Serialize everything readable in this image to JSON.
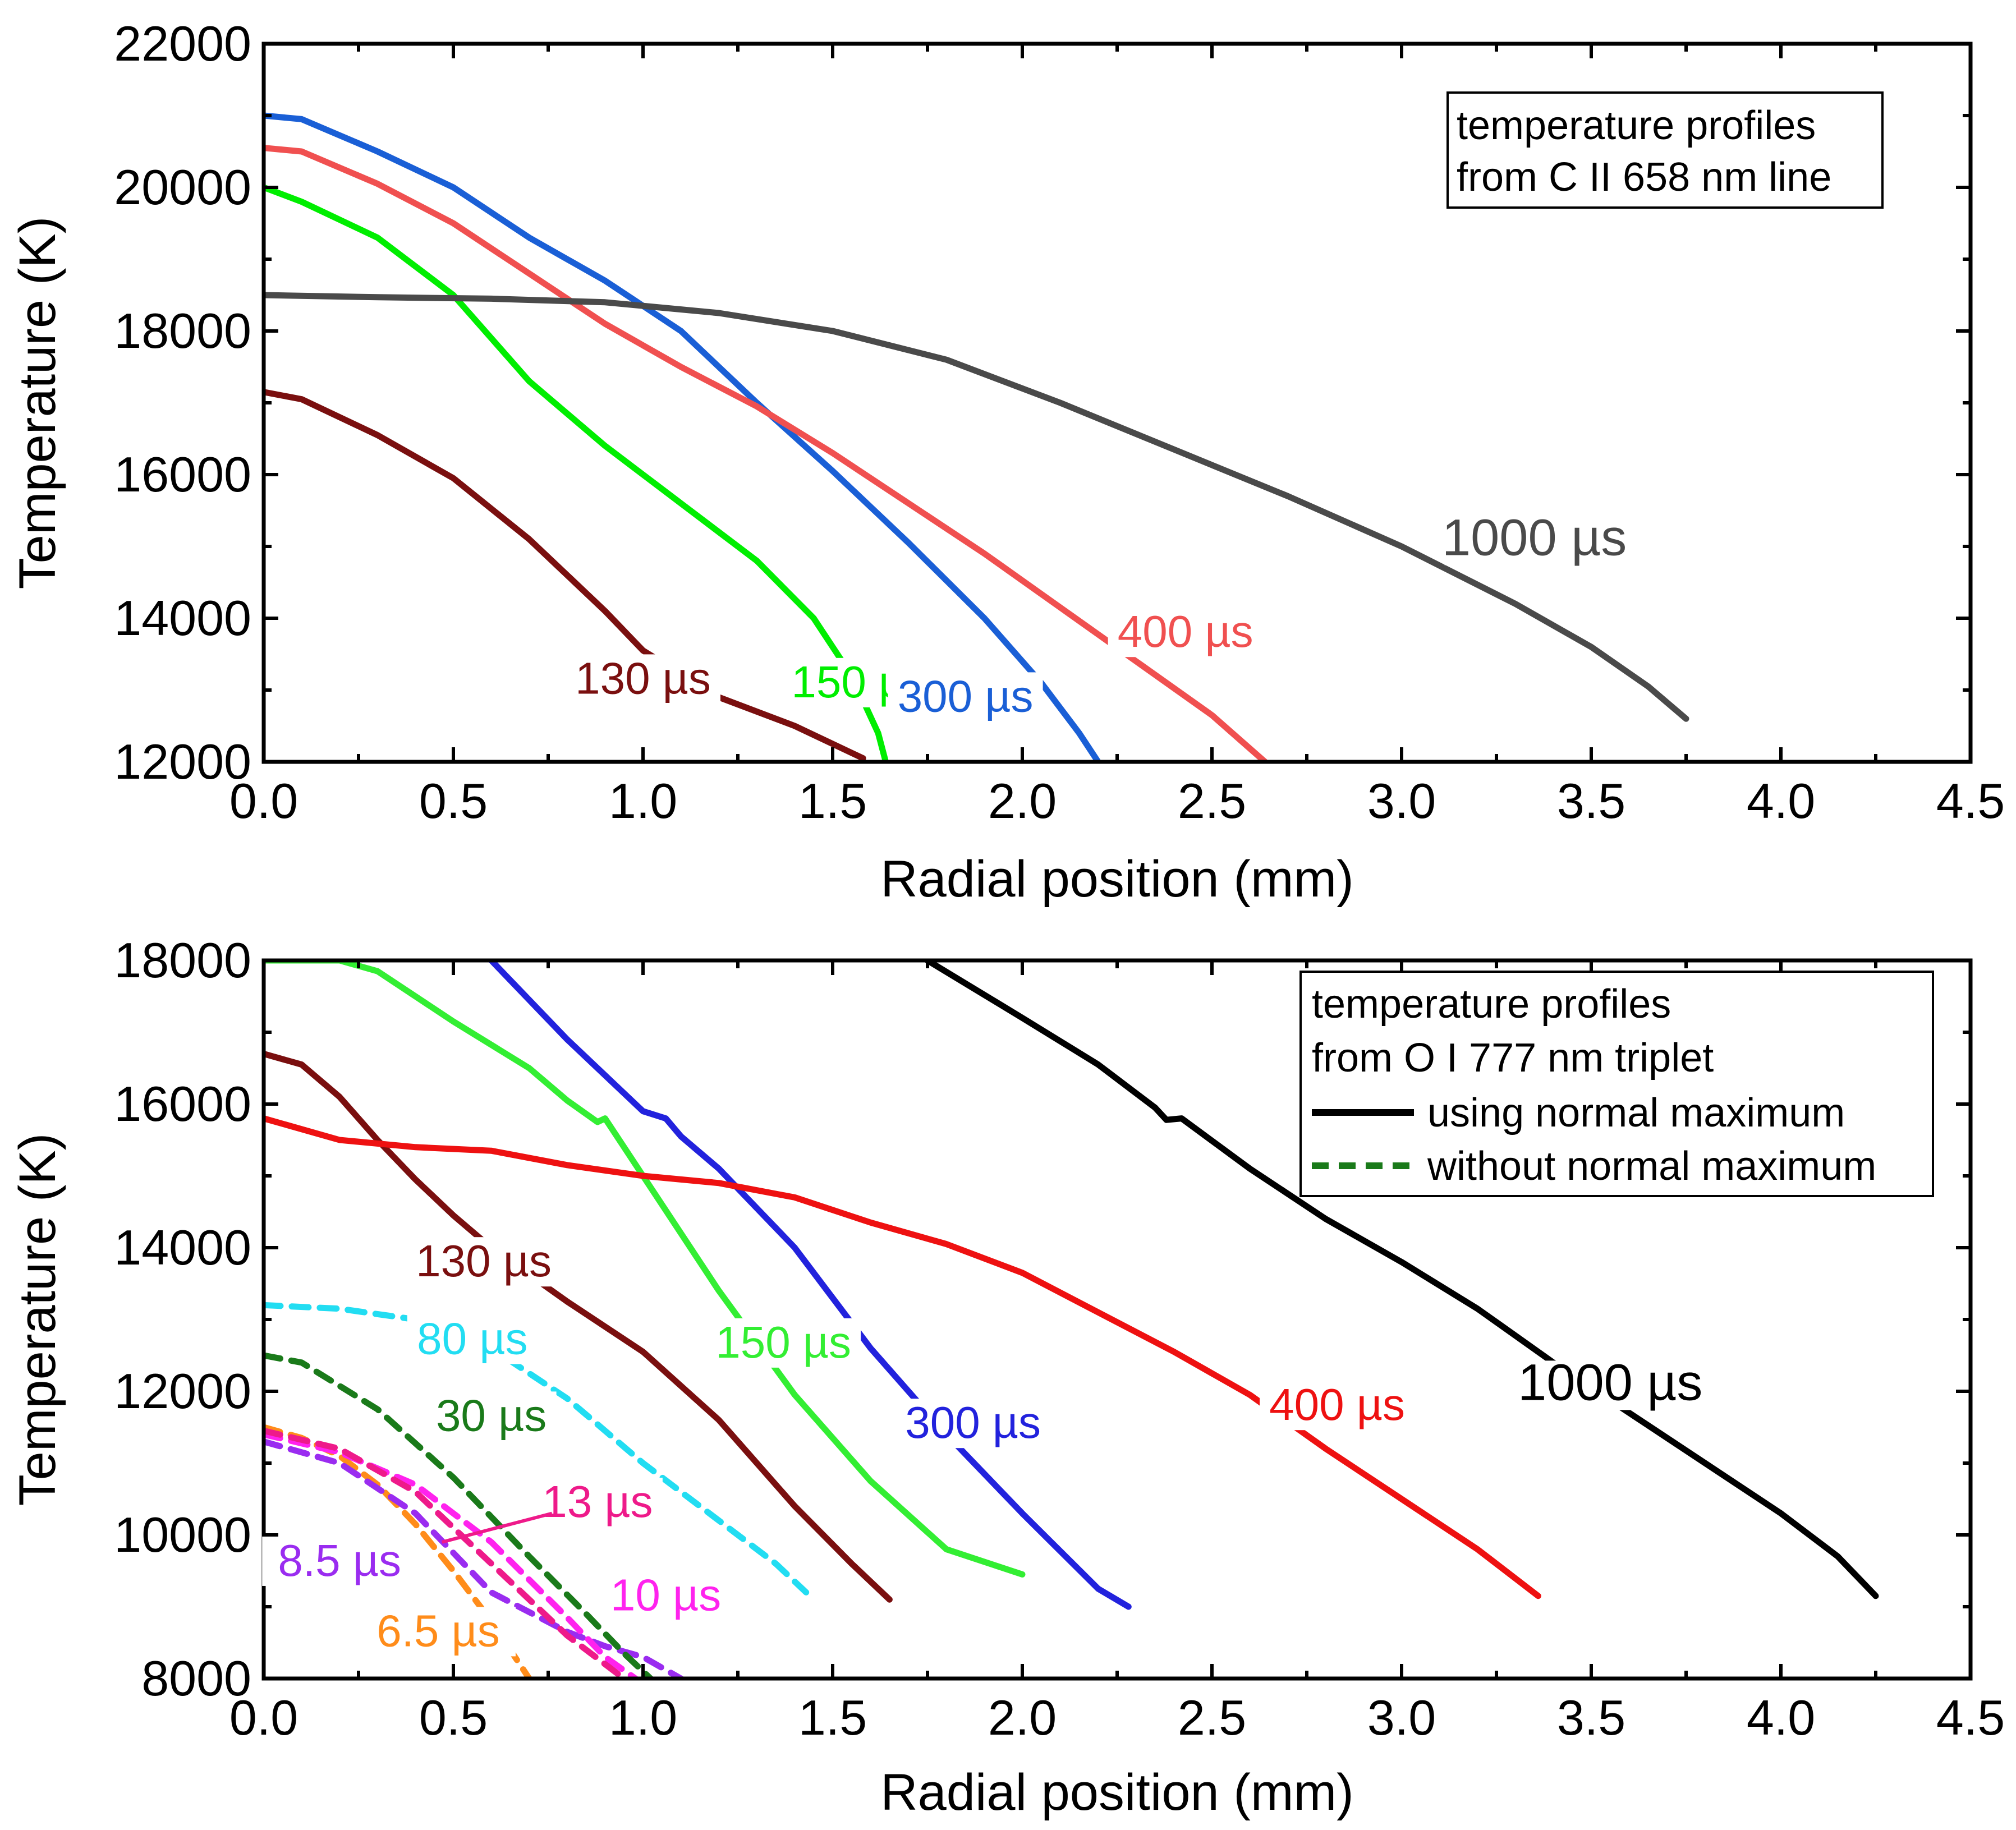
{
  "chart_data": [
    {
      "type": "line",
      "xlabel": "Radial position (mm)",
      "ylabel": "Temperature (K)",
      "xlim": [
        0,
        4.5
      ],
      "ylim": [
        12000,
        22000
      ],
      "xticks": [
        "0.0",
        "0.5",
        "1.0",
        "1.5",
        "2.0",
        "2.5",
        "3.0",
        "3.5",
        "4.0",
        "4.5"
      ],
      "yticks": [
        "12000",
        "14000",
        "16000",
        "18000",
        "20000",
        "22000"
      ],
      "legend": {
        "lines": [
          "temperature profiles",
          "from C II 658 nm line"
        ],
        "placement": "top-right"
      },
      "series": [
        {
          "name": "130 µs",
          "color": "#7a0f0f",
          "dash": false,
          "x": [
            0,
            0.1,
            0.3,
            0.5,
            0.7,
            0.9,
            1.0,
            1.2,
            1.4,
            1.58
          ],
          "y": [
            17150,
            17050,
            16550,
            15950,
            15100,
            14100,
            13550,
            12900,
            12500,
            12050
          ]
        },
        {
          "name": "150 µs",
          "color": "#00ee00",
          "dash": false,
          "x": [
            0,
            0.1,
            0.3,
            0.5,
            0.7,
            0.9,
            1.1,
            1.3,
            1.45,
            1.55,
            1.62,
            1.64
          ],
          "y": [
            20000,
            19800,
            19300,
            18500,
            17300,
            16400,
            15600,
            14800,
            14000,
            13200,
            12400,
            12000
          ]
        },
        {
          "name": "300 µs",
          "color": "#1a5fd6",
          "dash": false,
          "x": [
            0,
            0.1,
            0.3,
            0.5,
            0.7,
            0.9,
            1.1,
            1.3,
            1.5,
            1.7,
            1.9,
            2.05,
            2.15,
            2.2
          ],
          "y": [
            21000,
            20950,
            20500,
            20000,
            19300,
            18700,
            18000,
            17000,
            16050,
            15050,
            14000,
            13100,
            12400,
            12000
          ]
        },
        {
          "name": "400 µs",
          "color": "#f05050",
          "dash": false,
          "x": [
            0,
            0.1,
            0.3,
            0.5,
            0.7,
            0.9,
            1.1,
            1.3,
            1.5,
            1.7,
            1.9,
            2.1,
            2.3,
            2.5,
            2.64
          ],
          "y": [
            20550,
            20500,
            20050,
            19500,
            18800,
            18100,
            17500,
            16950,
            16300,
            15600,
            14900,
            14150,
            13400,
            12650,
            12000
          ]
        },
        {
          "name": "1000 µs",
          "color": "#4a4a4a",
          "dash": false,
          "x": [
            0,
            0.3,
            0.6,
            0.9,
            1.2,
            1.5,
            1.8,
            2.1,
            2.4,
            2.7,
            3.0,
            3.3,
            3.5,
            3.65,
            3.75
          ],
          "y": [
            18500,
            18470,
            18450,
            18400,
            18250,
            18000,
            17600,
            17000,
            16350,
            15700,
            15000,
            14200,
            13600,
            13050,
            12600
          ]
        }
      ]
    },
    {
      "type": "line",
      "xlabel": "Radial position (mm)",
      "ylabel": "Temperature (K)",
      "xlim": [
        0,
        4.5
      ],
      "ylim": [
        8000,
        18000
      ],
      "xticks": [
        "0.0",
        "0.5",
        "1.0",
        "1.5",
        "2.0",
        "2.5",
        "3.0",
        "3.5",
        "4.0",
        "4.5"
      ],
      "yticks": [
        "8000",
        "10000",
        "12000",
        "14000",
        "16000",
        "18000"
      ],
      "legend": {
        "lines": [
          "temperature profiles",
          "from O I 777 nm triplet"
        ],
        "entries": [
          {
            "label": "using normal maximum",
            "color": "#000000",
            "dash": false
          },
          {
            "label": "without normal maximum",
            "color": "#1a7a1a",
            "dash": true
          }
        ],
        "placement": "top-right"
      },
      "series": [
        {
          "name": "6.5 µs",
          "color": "#ff8c1a",
          "dash": true,
          "x": [
            0,
            0.1,
            0.2,
            0.3,
            0.4,
            0.5,
            0.6,
            0.7
          ],
          "y": [
            11500,
            11350,
            11100,
            10700,
            10150,
            9500,
            8800,
            8000
          ]
        },
        {
          "name": "8.5 µs",
          "color": "#9a2cf0",
          "dash": true,
          "x": [
            0,
            0.2,
            0.4,
            0.6,
            0.8,
            0.9,
            1.0,
            1.1
          ],
          "y": [
            11300,
            11000,
            10300,
            9200,
            8650,
            8450,
            8300,
            8000
          ]
        },
        {
          "name": "10 µs",
          "color": "#ff22ee",
          "dash": true,
          "x": [
            0,
            0.2,
            0.4,
            0.6,
            0.8,
            0.9,
            0.98
          ],
          "y": [
            11400,
            11150,
            10700,
            9900,
            8850,
            8300,
            8000
          ]
        },
        {
          "name": "13 µs",
          "color": "#ee1a8a",
          "dash": true,
          "x": [
            0,
            0.2,
            0.4,
            0.6,
            0.8,
            0.95
          ],
          "y": [
            11450,
            11200,
            10600,
            9600,
            8600,
            8000
          ]
        },
        {
          "name": "30 µs",
          "color": "#1a7a1a",
          "dash": true,
          "x": [
            0,
            0.1,
            0.3,
            0.5,
            0.7,
            0.85,
            0.95,
            1.02
          ],
          "y": [
            12500,
            12400,
            11750,
            10800,
            9700,
            8900,
            8350,
            8000
          ]
        },
        {
          "name": "80 µs",
          "color": "#22ddf2",
          "dash": true,
          "x": [
            0,
            0.2,
            0.4,
            0.6,
            0.8,
            1.0,
            1.2,
            1.35,
            1.43
          ],
          "y": [
            13200,
            13150,
            13000,
            12600,
            11900,
            11000,
            10200,
            9600,
            9200
          ]
        },
        {
          "name": "130 µs",
          "color": "#7a0f0f",
          "dash": false,
          "x": [
            0,
            0.1,
            0.2,
            0.3,
            0.4,
            0.5,
            0.6,
            0.8,
            1.0,
            1.2,
            1.4,
            1.55,
            1.65
          ],
          "y": [
            16700,
            16550,
            16100,
            15500,
            14950,
            14450,
            14000,
            13250,
            12550,
            11600,
            10400,
            9600,
            9100
          ]
        },
        {
          "name": "150 µs",
          "color": "#33ee33",
          "dash": false,
          "x": [
            0,
            0.2,
            0.3,
            0.5,
            0.7,
            0.8,
            0.88,
            0.9,
            1.0,
            1.2,
            1.4,
            1.6,
            1.8,
            2.0
          ],
          "y": [
            18000,
            18000,
            17850,
            17150,
            16500,
            16050,
            15750,
            15800,
            15000,
            13400,
            11950,
            10750,
            9800,
            9450
          ]
        },
        {
          "name": "300 µs",
          "color": "#2222dd",
          "dash": false,
          "x": [
            0.6,
            0.8,
            1.0,
            1.06,
            1.1,
            1.2,
            1.4,
            1.6,
            1.8,
            2.0,
            2.2,
            2.28
          ],
          "y": [
            18000,
            16900,
            15900,
            15800,
            15550,
            15100,
            14000,
            12600,
            11400,
            10300,
            9250,
            9000
          ]
        },
        {
          "name": "400 µs",
          "color": "#ee1111",
          "dash": false,
          "x": [
            0,
            0.2,
            0.4,
            0.6,
            0.8,
            1.0,
            1.2,
            1.4,
            1.6,
            1.8,
            2.0,
            2.2,
            2.4,
            2.6,
            2.8,
            3.0,
            3.2,
            3.36
          ],
          "y": [
            15800,
            15500,
            15400,
            15350,
            15150,
            15000,
            14900,
            14700,
            14350,
            14050,
            13650,
            13100,
            12550,
            11950,
            11200,
            10500,
            9800,
            9150
          ]
        },
        {
          "name": "1000 µs",
          "color": "#000000",
          "dash": false,
          "x": [
            1.75,
            2.0,
            2.2,
            2.35,
            2.38,
            2.42,
            2.6,
            2.8,
            3.0,
            3.2,
            3.4,
            3.6,
            3.8,
            4.0,
            4.15,
            4.25
          ],
          "y": [
            18000,
            17200,
            16550,
            15950,
            15780,
            15800,
            15100,
            14400,
            13800,
            13150,
            12400,
            11700,
            11000,
            10300,
            9700,
            9150
          ]
        }
      ]
    }
  ]
}
